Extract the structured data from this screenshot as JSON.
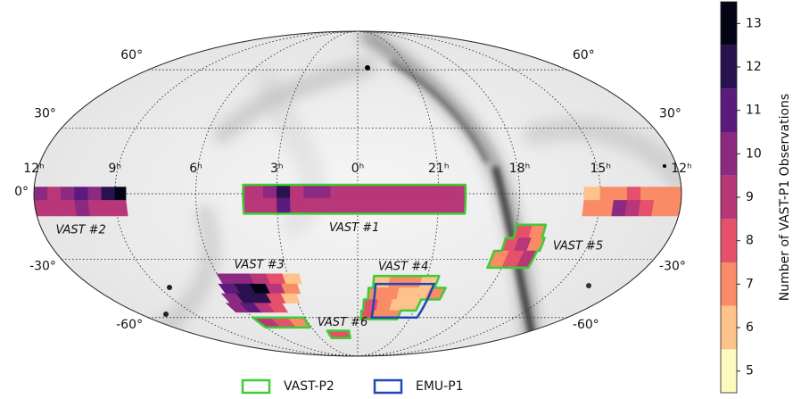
{
  "chart_data": {
    "type": "mollweide",
    "grid": true,
    "colorbar": {
      "label": "Number of VAST-P1 Observations",
      "lim": [
        4.5,
        13.5
      ],
      "ticks": [
        5,
        6,
        7,
        8,
        9,
        10,
        11,
        12,
        13
      ],
      "colors": [
        "#fcfbbd",
        "#fdc38b",
        "#f98c66",
        "#e5506a",
        "#b83779",
        "#8c2981",
        "#5b1b7c",
        "#2a1250",
        "#050416"
      ]
    },
    "ra_ticks": [
      {
        "value": 12,
        "label": "12ʰ"
      },
      {
        "value": 9,
        "label": "9ʰ"
      },
      {
        "value": 6,
        "label": "6ʰ"
      },
      {
        "value": 3,
        "label": "3ʰ"
      },
      {
        "value": 0,
        "label": "0ʰ"
      },
      {
        "value": 21,
        "label": "21ʰ"
      },
      {
        "value": 18,
        "label": "18ʰ"
      },
      {
        "value": 15,
        "label": "15ʰ"
      },
      {
        "value": 12,
        "label": "12ʰ"
      }
    ],
    "lat_ticks": [
      {
        "value": 60,
        "label": "60°"
      },
      {
        "value": 30,
        "label": "30°"
      },
      {
        "value": 0,
        "label": "0°"
      },
      {
        "value": -30,
        "label": "-30°"
      },
      {
        "value": -60,
        "label": "-60°"
      }
    ],
    "regions": [
      {
        "name": "VAST #1",
        "outlined": true,
        "rows": [
          {
            "dec": [
              4,
              -2
            ],
            "ra": [
              4.25,
              3.5,
              3.0,
              2.5,
              2.0,
              1.0,
              0,
              23,
              22,
              21,
              20
            ],
            "values": [
              9,
              10,
              12,
              9,
              10,
              9,
              9,
              9,
              9,
              9
            ]
          },
          {
            "dec": [
              -2,
              -9
            ],
            "ra": [
              4.25,
              3.5,
              3.0,
              2.5,
              2.0,
              1.0,
              0,
              23,
              22,
              21,
              20
            ],
            "values": [
              9,
              9,
              11,
              9,
              9,
              9,
              9,
              9,
              9,
              9
            ]
          }
        ]
      },
      {
        "name": "VAST #2",
        "outlined": false,
        "rows": [
          {
            "dec": [
              3,
              -3
            ],
            "ra": [
              12,
              11.5,
              11,
              10.5,
              10,
              9.5,
              9,
              8.6
            ],
            "values": [
              10,
              9,
              10,
              11,
              10,
              12,
              13
            ]
          },
          {
            "dec": [
              -3,
              -10
            ],
            "ra": [
              12,
              11.5,
              11,
              10.5,
              10,
              9.5,
              9,
              8.6
            ],
            "values": [
              9,
              9,
              9,
              10,
              9,
              9,
              9
            ]
          },
          {
            "dec": [
              3,
              -3
            ],
            "ra": [
              15.6,
              15,
              14.5,
              14,
              13.5,
              13,
              12.5,
              12
            ],
            "values": [
              6,
              7,
              7,
              8,
              7,
              7,
              7
            ]
          },
          {
            "dec": [
              -3,
              -10
            ],
            "ra": [
              15.6,
              15,
              14.5,
              14,
              13.5,
              13,
              12.5,
              12
            ],
            "values": [
              7,
              7,
              10,
              9,
              8,
              7,
              7
            ]
          }
        ]
      },
      {
        "name": "VAST #3",
        "outlined": false,
        "rows": [
          {
            "dec": [
              -37,
              -42
            ],
            "ra": [
              6.0,
              5.3,
              4.6,
              3.9,
              3.2,
              2.5
            ],
            "values": [
              10,
              10,
              9,
              8,
              6
            ]
          },
          {
            "dec": [
              -42,
              -47
            ],
            "ra": [
              6.2,
              5.5,
              4.8,
              4.1,
              3.4,
              2.7
            ],
            "values": [
              11,
              12,
              13,
              9,
              7
            ]
          },
          {
            "dec": [
              -47,
              -52
            ],
            "ra": [
              6.4,
              5.7,
              5.0,
              4.3,
              3.6,
              2.9
            ],
            "values": [
              10,
              12,
              12,
              8,
              6
            ]
          },
          {
            "dec": [
              -52,
              -57
            ],
            "ra": [
              6.6,
              5.9,
              5.2,
              4.5,
              3.8
            ],
            "values": [
              10,
              11,
              9,
              8
            ]
          }
        ]
      },
      {
        "name": "VAST #4",
        "outlined": true,
        "rows": [
          {
            "dec": [
              -38,
              -44
            ],
            "ra": [
              23.3,
              22.6,
              21.9,
              21.2,
              20.5
            ],
            "values": [
              6,
              7,
              7,
              6
            ]
          },
          {
            "dec": [
              -44,
              -50
            ],
            "ra": [
              23.5,
              22.8,
              22.1,
              21.4,
              20.7,
              20.0
            ],
            "values": [
              7,
              7,
              6,
              6,
              7
            ]
          },
          {
            "dec": [
              -50,
              -56
            ],
            "ra": [
              23.7,
              23.0,
              22.3,
              21.6,
              20.9
            ],
            "values": [
              8,
              7,
              6,
              6
            ]
          },
          {
            "dec": [
              -56,
              -61
            ],
            "ra": [
              23.8,
              23.1,
              22.4,
              21.7
            ],
            "values": [
              8,
              7,
              7
            ]
          }
        ]
      },
      {
        "name": "VAST #5",
        "outlined": true,
        "rows": [
          {
            "dec": [
              -14,
              -20
            ],
            "ra": [
              18.0,
              17.4,
              16.9
            ],
            "values": [
              8,
              7
            ]
          },
          {
            "dec": [
              -20,
              -26
            ],
            "ra": [
              18.3,
              17.8,
              17.3,
              16.8
            ],
            "values": [
              8,
              9,
              7
            ]
          },
          {
            "dec": [
              -26,
              -34
            ],
            "ra": [
              18.6,
              18.0,
              17.4,
              16.9
            ],
            "values": [
              7,
              8,
              9
            ]
          }
        ]
      },
      {
        "name": "VAST #6",
        "outlined": true,
        "rows": [
          {
            "dec": [
              -60,
              -66
            ],
            "ra": [
              6.0,
              5.0,
              4.0,
              3.1
            ],
            "values": [
              9,
              8,
              7
            ]
          },
          {
            "dec": [
              -68,
              -73
            ],
            "ra": [
              2.1,
              0.6
            ],
            "values": [
              8
            ]
          }
        ]
      }
    ],
    "legend": [
      {
        "name": "VAST-P2",
        "color": "#3ecb35"
      },
      {
        "name": "EMU-P1",
        "color": "#1f48b4",
        "footprint": {
          "ra": [
            23.2,
            20.6
          ],
          "dec": [
            -42,
            -60
          ]
        }
      }
    ]
  }
}
